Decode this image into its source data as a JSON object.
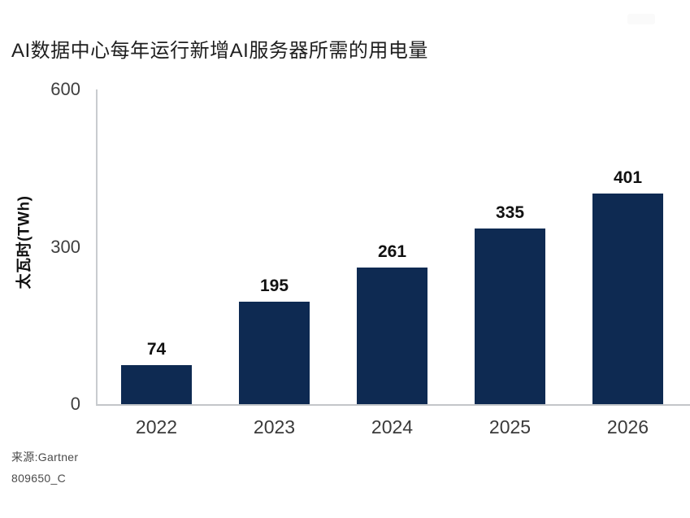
{
  "title": "AI数据中心每年运行新增AI服务器所需的用电量",
  "source": {
    "line1": "来源:Gartner",
    "line2": "809650_C"
  },
  "colors": {
    "bar": "#0e2a52",
    "axis": "#c6c9cc",
    "title_text": "#1f1f1f",
    "tick_text": "#3f3f3f",
    "value_text": "#111111",
    "source_text": "#4b4b4b"
  },
  "chart_data": {
    "type": "bar",
    "categories": [
      "2022",
      "2023",
      "2024",
      "2025",
      "2026"
    ],
    "values": [
      74,
      195,
      261,
      335,
      401
    ],
    "title": "AI数据中心每年运行新增AI服务器所需的用电量",
    "xlabel": "",
    "ylabel": "太瓦时(TWh)",
    "ylim": [
      0,
      600
    ],
    "yticks": [
      0,
      300,
      600
    ],
    "grid": false,
    "legend": "none",
    "bar_color": "#0e2a52"
  }
}
